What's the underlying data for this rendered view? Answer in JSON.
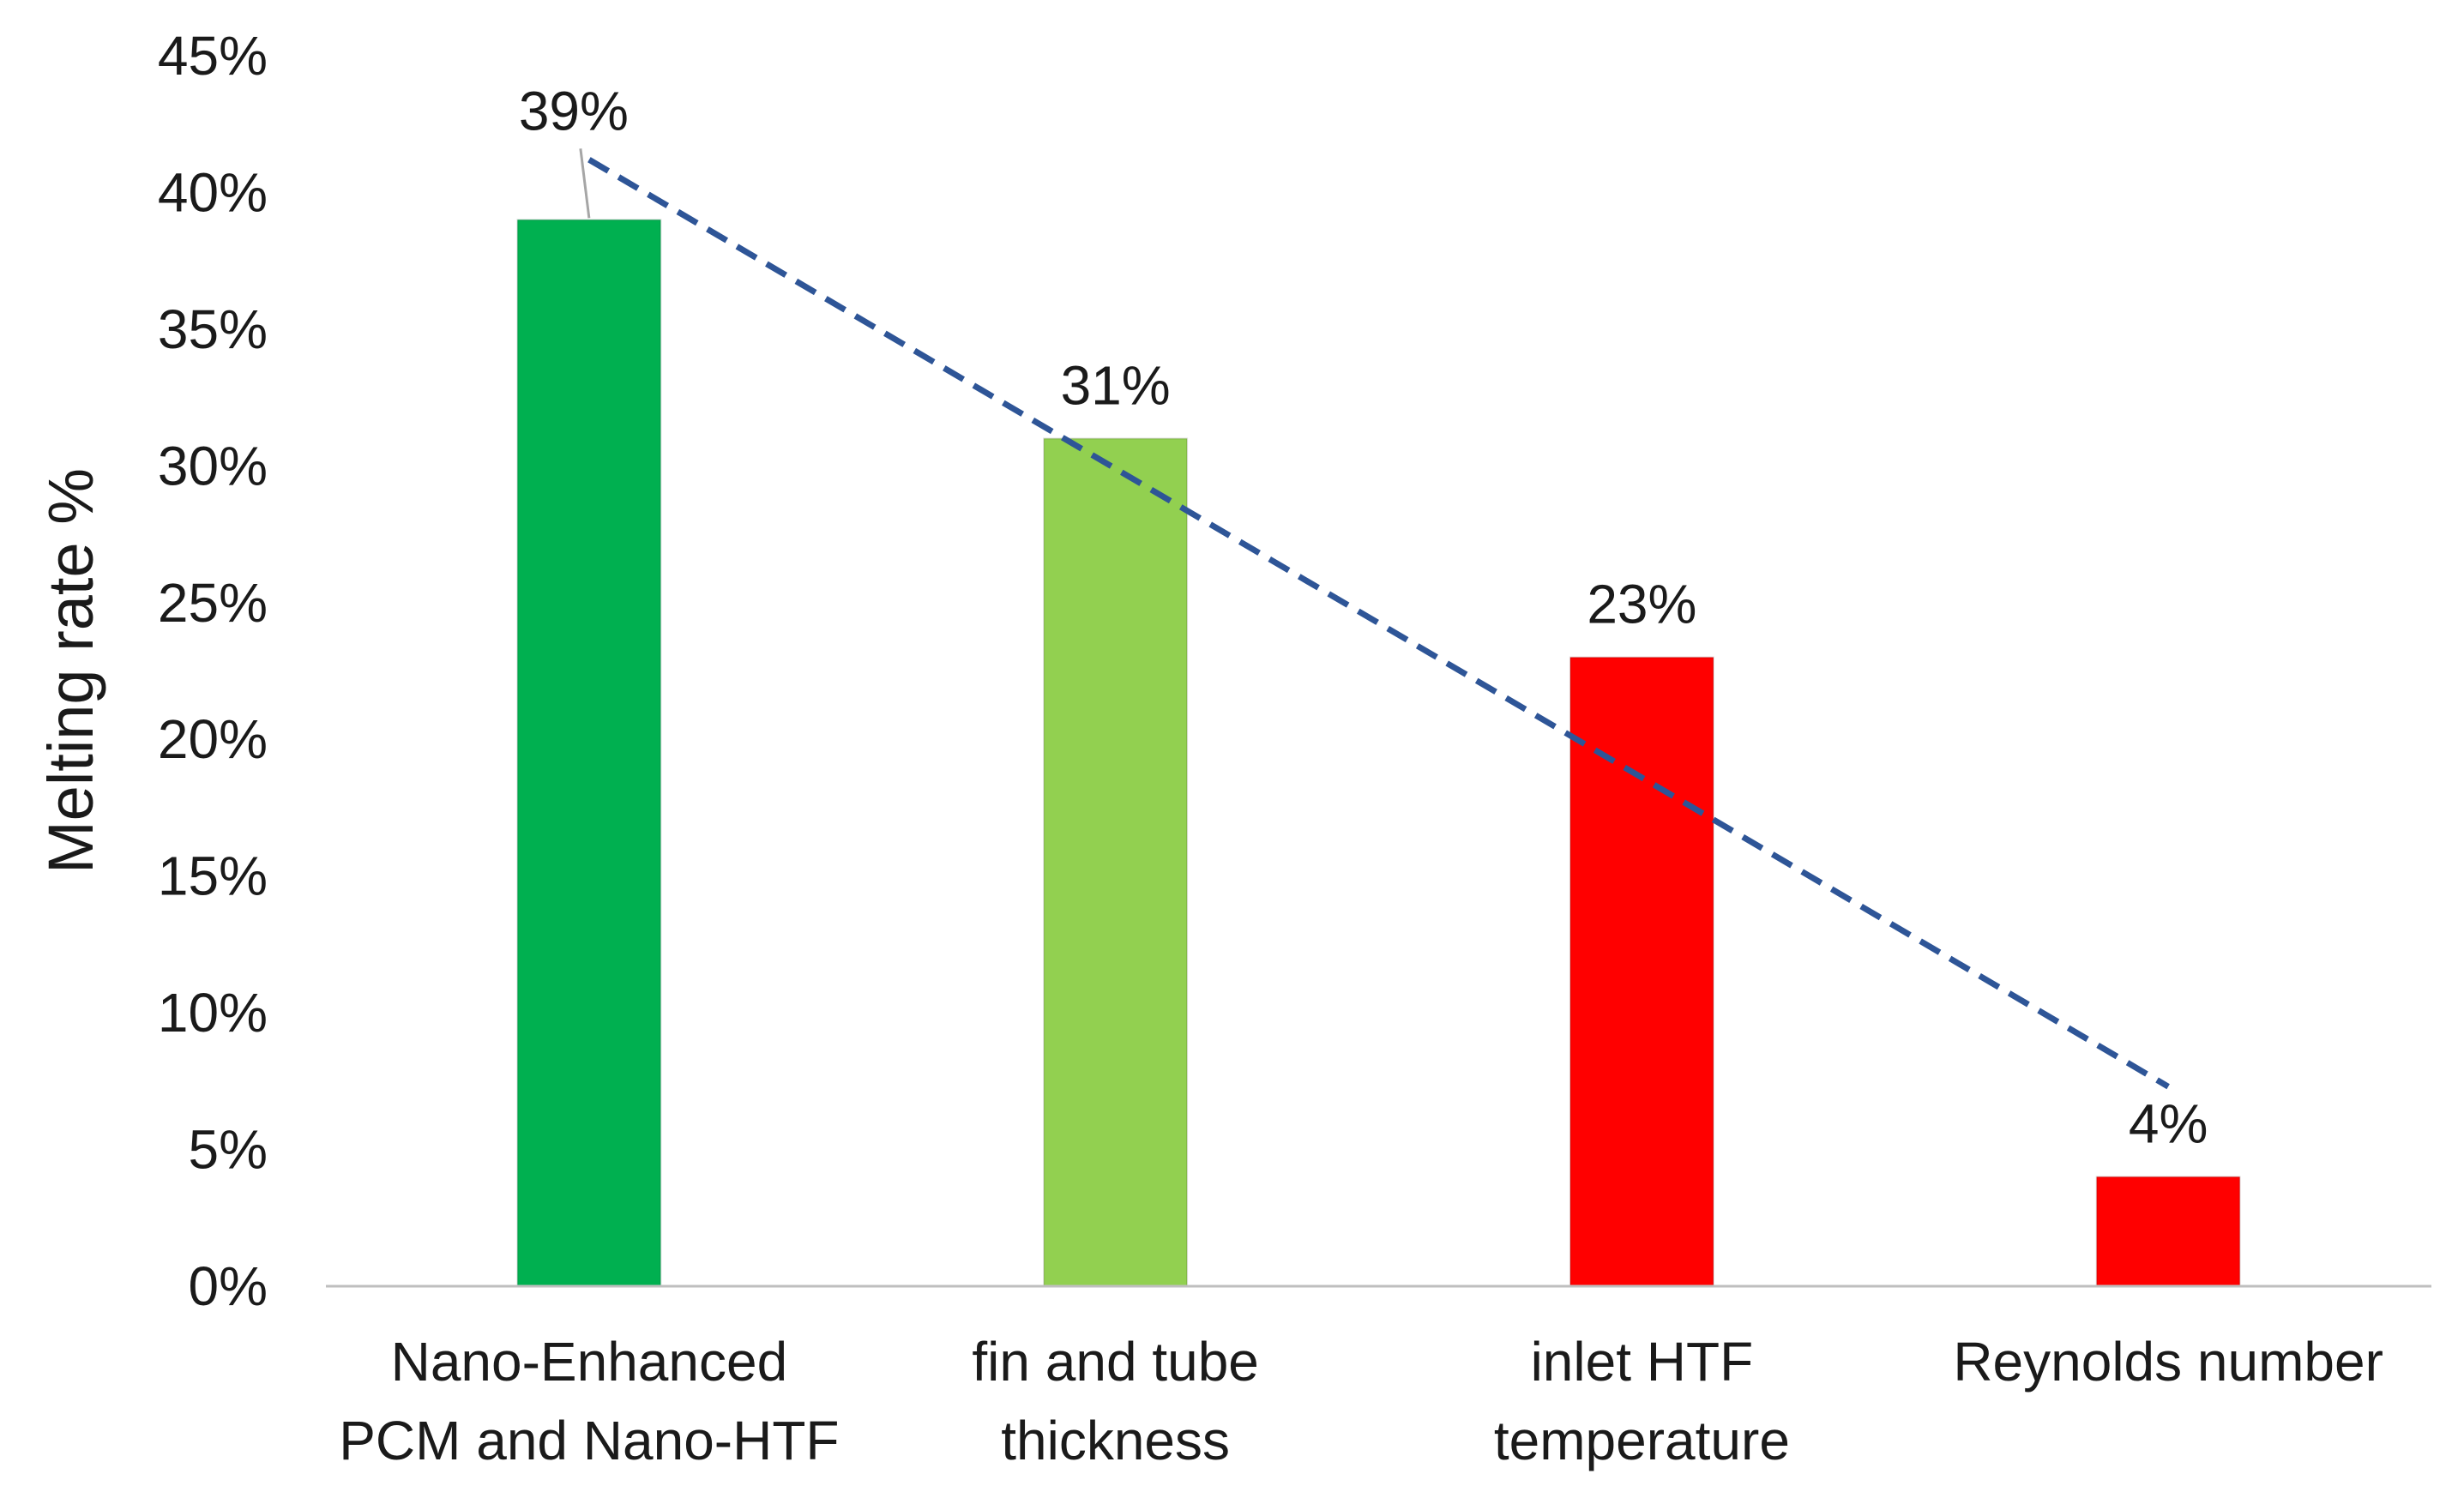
{
  "chart_data": {
    "type": "bar",
    "title": "",
    "xlabel": "",
    "ylabel": "Melting rate %",
    "categories": [
      [
        "Nano-Enhanced",
        "PCM and Nano-HTF"
      ],
      [
        "fin and tube",
        "thickness"
      ],
      [
        "inlet HTF",
        "temperature"
      ],
      [
        "Reynolds number"
      ]
    ],
    "values": [
      39,
      31,
      23,
      4
    ],
    "data_labels": [
      "39%",
      "31%",
      "23%",
      "4%"
    ],
    "bar_colors": [
      "#00b050",
      "#92d050",
      "#ff0000",
      "#ff0000"
    ],
    "ylim": [
      0,
      45
    ],
    "yticks": [
      0,
      5,
      10,
      15,
      20,
      25,
      30,
      35,
      40,
      45
    ],
    "ytick_labels": [
      "0%",
      "5%",
      "10%",
      "15%",
      "20%",
      "25%",
      "30%",
      "35%",
      "40%",
      "45%"
    ],
    "trendline": {
      "type": "linear",
      "style": "dashed",
      "color": "#2e5597"
    },
    "grid": false,
    "legend": "none",
    "axis_color": "#bfbfbf"
  }
}
